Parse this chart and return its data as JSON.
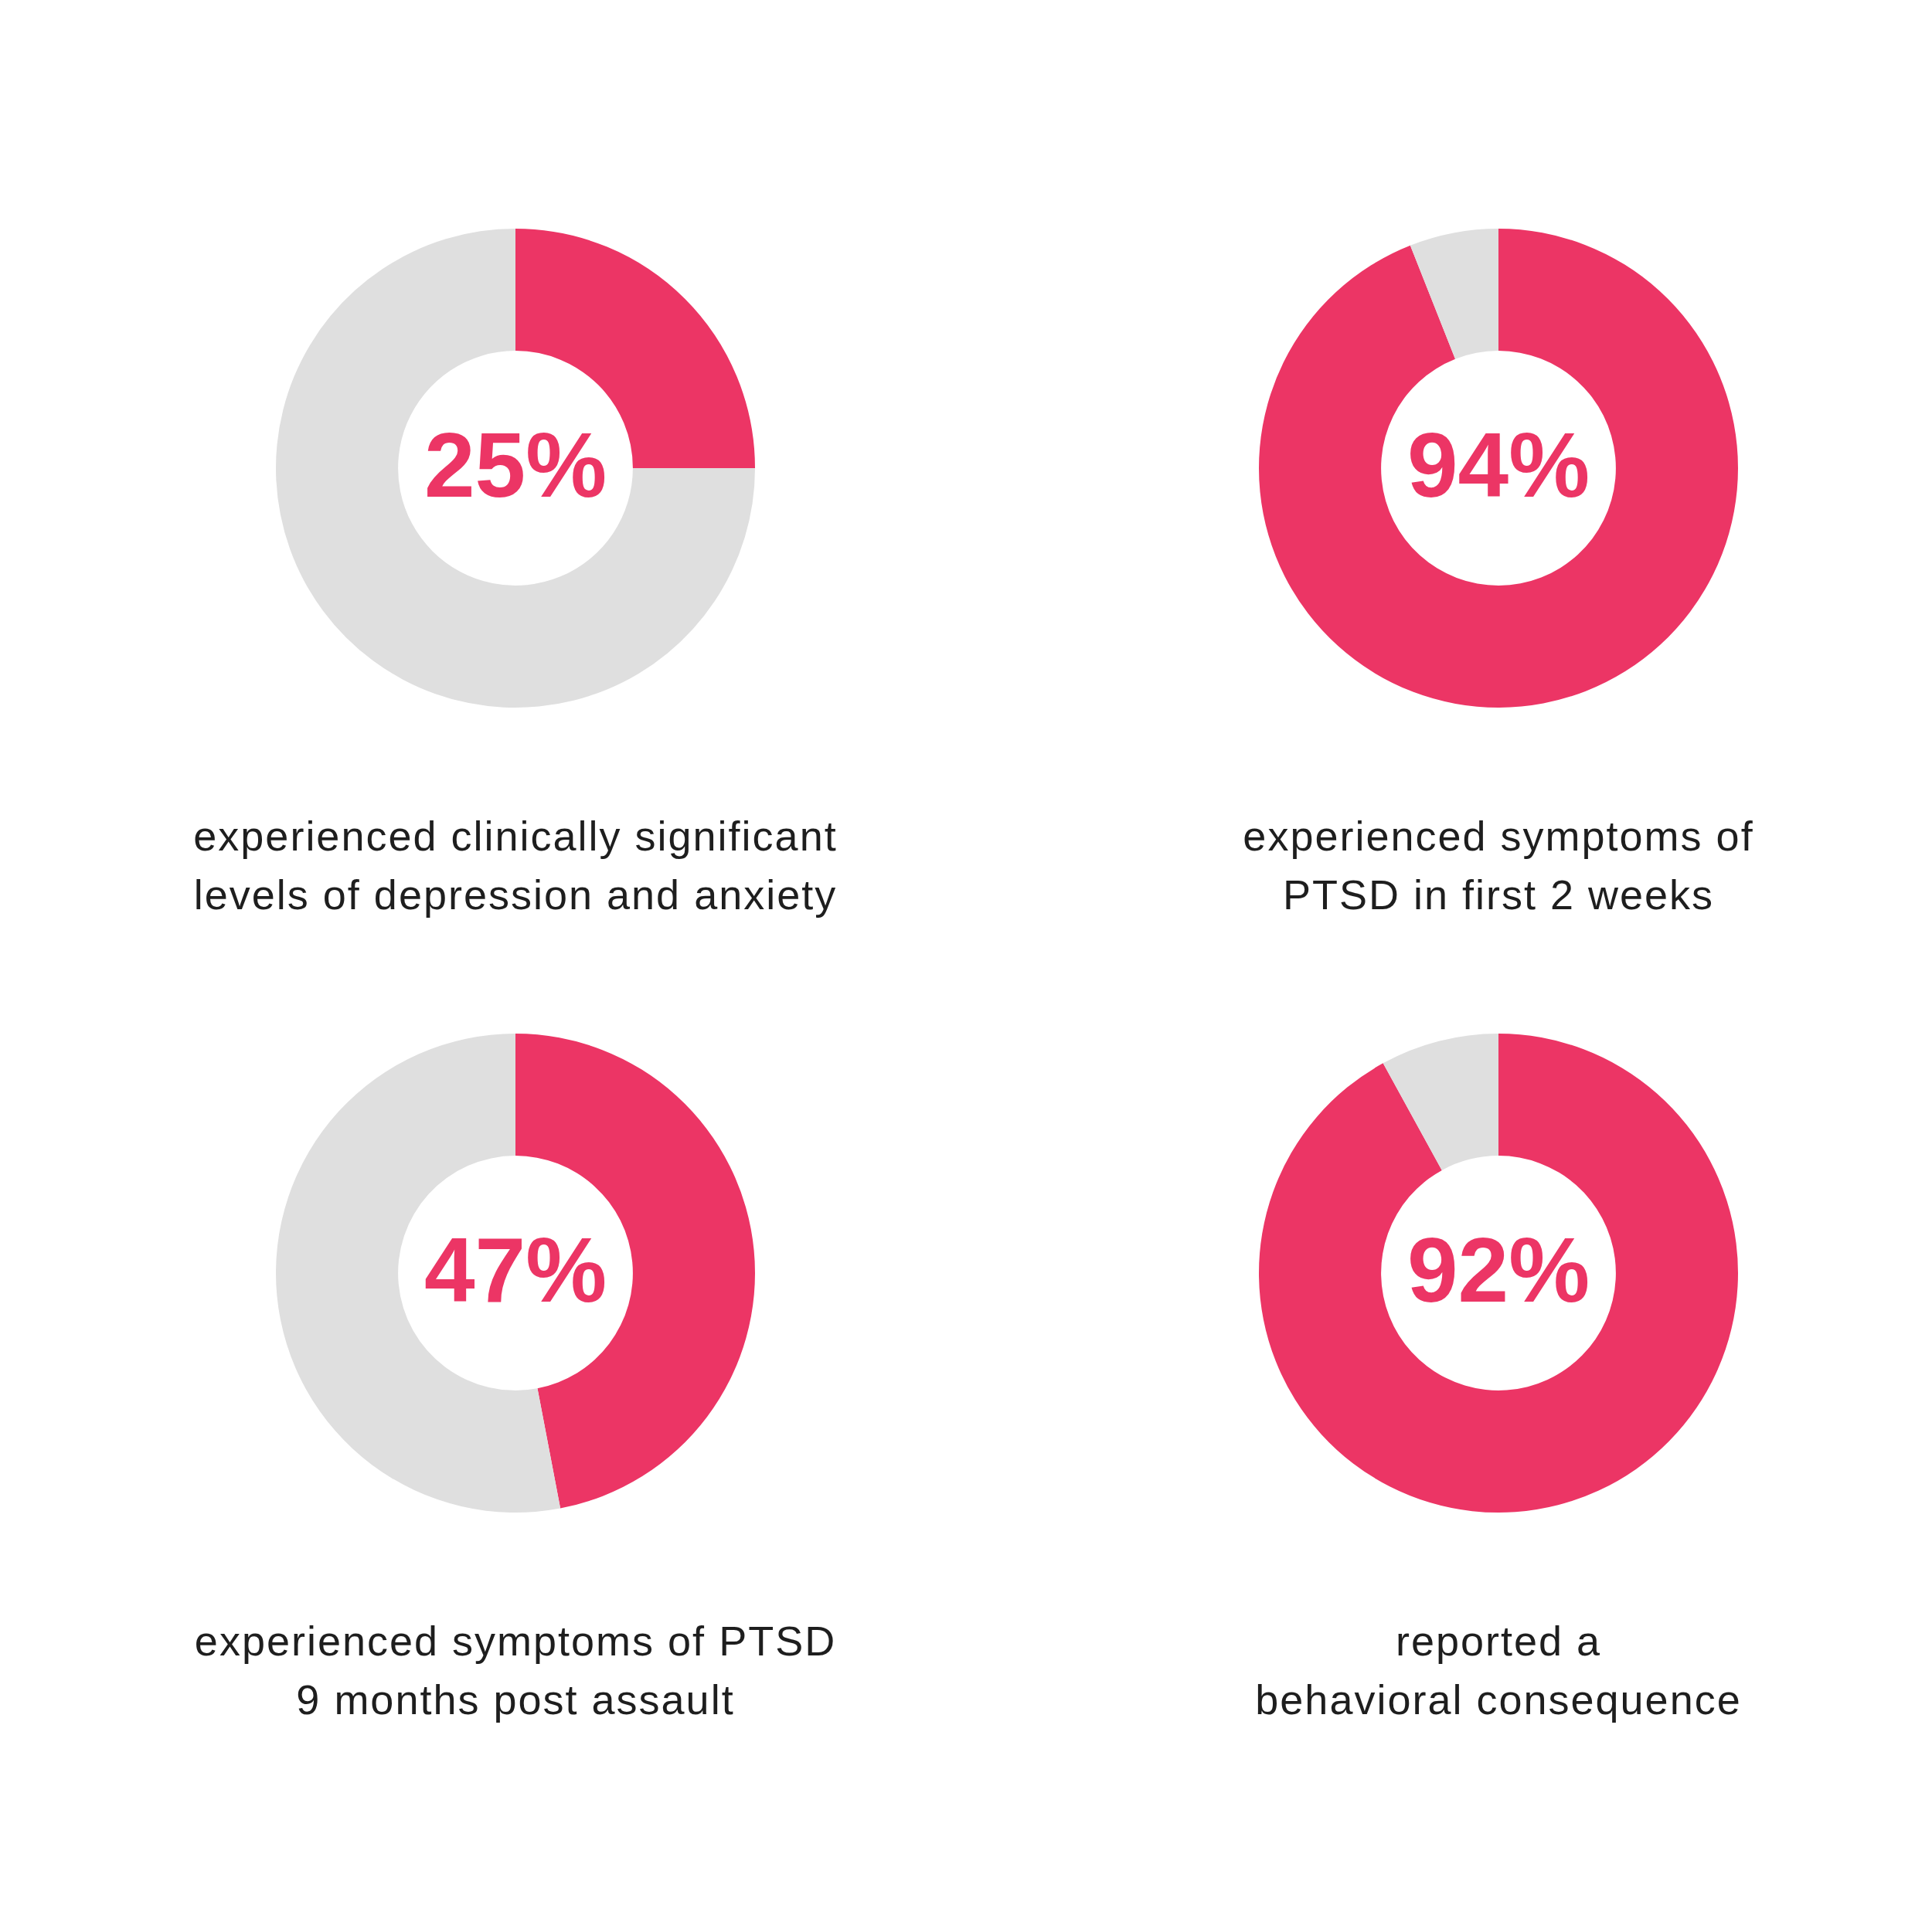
{
  "chart_data": [
    {
      "type": "donut",
      "title": "experienced clinically significant\nlevels of depression and anxiety",
      "categories": [
        null,
        null
      ],
      "values": [
        25,
        75
      ],
      "colors": [
        "#ec3565",
        "#dfdfdf"
      ],
      "value_labels": [
        "25%",
        null
      ]
    },
    {
      "type": "donut",
      "title": "experienced symptoms of\nPTSD in first 2 weeks",
      "categories": [
        null,
        null
      ],
      "values": [
        94,
        6
      ],
      "colors": [
        "#ec3565",
        "#dfdfdf"
      ],
      "value_labels": [
        "94%",
        null
      ]
    },
    {
      "type": "donut",
      "title": "experienced symptoms of PTSD\n9 months post assault",
      "categories": [
        null,
        null
      ],
      "values": [
        47,
        53
      ],
      "colors": [
        "#ec3565",
        "#dfdfdf"
      ],
      "value_labels": [
        "47%",
        null
      ]
    },
    {
      "type": "donut",
      "title": "reported a\nbehavioral consequence",
      "categories": [
        null,
        null
      ],
      "values": [
        92,
        8
      ],
      "colors": [
        "#ec3565",
        "#dfdfdf"
      ],
      "value_labels": [
        "92%",
        null
      ]
    }
  ]
}
